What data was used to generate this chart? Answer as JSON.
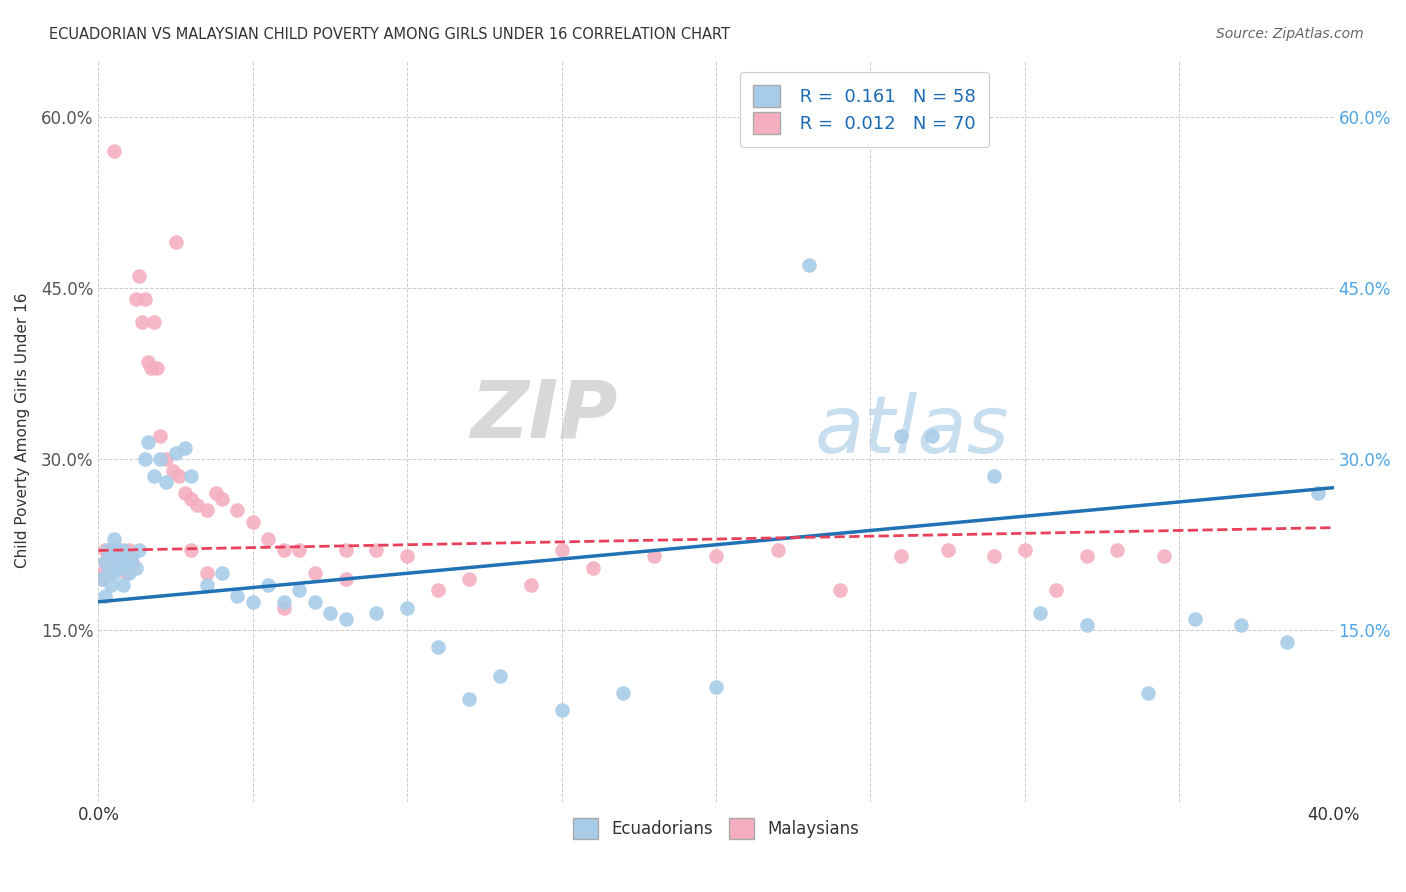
{
  "title": "ECUADORIAN VS MALAYSIAN CHILD POVERTY AMONG GIRLS UNDER 16 CORRELATION CHART",
  "source": "Source: ZipAtlas.com",
  "ylabel": "Child Poverty Among Girls Under 16",
  "x_min": 0.0,
  "x_max": 0.4,
  "y_min": 0.0,
  "y_max": 0.65,
  "x_ticks": [
    0.0,
    0.05,
    0.1,
    0.15,
    0.2,
    0.25,
    0.3,
    0.35,
    0.4
  ],
  "y_ticks": [
    0.0,
    0.15,
    0.3,
    0.45,
    0.6
  ],
  "y_tick_labels_left": [
    "",
    "15.0%",
    "30.0%",
    "45.0%",
    "60.0%"
  ],
  "y_tick_labels_right": [
    "",
    "15.0%",
    "30.0%",
    "45.0%",
    "60.0%"
  ],
  "ecu_color": "#a8cce8",
  "mal_color": "#f4aec0",
  "ecu_line_color": "#2171b5",
  "mal_line_color": "#e8405a",
  "ecu_R": "0.161",
  "ecu_N": "58",
  "mal_R": "0.012",
  "mal_N": "70",
  "watermark_zip": "ZIP",
  "watermark_atlas": "atlas",
  "legend_label_ecu": "Ecuadorians",
  "legend_label_mal": "Malaysians",
  "ecu_scatter_x": [
    0.001,
    0.002,
    0.002,
    0.003,
    0.003,
    0.004,
    0.004,
    0.005,
    0.005,
    0.006,
    0.006,
    0.007,
    0.007,
    0.008,
    0.008,
    0.009,
    0.01,
    0.01,
    0.011,
    0.012,
    0.013,
    0.015,
    0.016,
    0.018,
    0.02,
    0.022,
    0.025,
    0.028,
    0.03,
    0.035,
    0.04,
    0.045,
    0.05,
    0.055,
    0.06,
    0.065,
    0.07,
    0.075,
    0.08,
    0.09,
    0.1,
    0.11,
    0.12,
    0.13,
    0.15,
    0.17,
    0.2,
    0.23,
    0.26,
    0.27,
    0.29,
    0.305,
    0.32,
    0.34,
    0.355,
    0.37,
    0.385,
    0.395
  ],
  "ecu_scatter_y": [
    0.195,
    0.21,
    0.18,
    0.22,
    0.2,
    0.19,
    0.215,
    0.23,
    0.2,
    0.205,
    0.22,
    0.215,
    0.21,
    0.22,
    0.19,
    0.205,
    0.21,
    0.2,
    0.215,
    0.205,
    0.22,
    0.3,
    0.315,
    0.285,
    0.3,
    0.28,
    0.305,
    0.31,
    0.285,
    0.19,
    0.2,
    0.18,
    0.175,
    0.19,
    0.175,
    0.185,
    0.175,
    0.165,
    0.16,
    0.165,
    0.17,
    0.135,
    0.09,
    0.11,
    0.08,
    0.095,
    0.1,
    0.47,
    0.32,
    0.32,
    0.285,
    0.165,
    0.155,
    0.095,
    0.16,
    0.155,
    0.14,
    0.27
  ],
  "mal_scatter_x": [
    0.001,
    0.001,
    0.002,
    0.002,
    0.003,
    0.003,
    0.004,
    0.004,
    0.005,
    0.005,
    0.006,
    0.006,
    0.007,
    0.007,
    0.008,
    0.008,
    0.009,
    0.01,
    0.01,
    0.011,
    0.012,
    0.013,
    0.014,
    0.015,
    0.016,
    0.017,
    0.018,
    0.019,
    0.02,
    0.022,
    0.024,
    0.026,
    0.028,
    0.03,
    0.032,
    0.035,
    0.038,
    0.04,
    0.045,
    0.05,
    0.055,
    0.06,
    0.065,
    0.07,
    0.08,
    0.09,
    0.1,
    0.11,
    0.12,
    0.14,
    0.15,
    0.16,
    0.18,
    0.2,
    0.22,
    0.24,
    0.26,
    0.275,
    0.29,
    0.3,
    0.31,
    0.32,
    0.33,
    0.345,
    0.005,
    0.025,
    0.03,
    0.035,
    0.06,
    0.08
  ],
  "mal_scatter_y": [
    0.195,
    0.2,
    0.22,
    0.21,
    0.2,
    0.215,
    0.22,
    0.205,
    0.215,
    0.22,
    0.22,
    0.21,
    0.215,
    0.22,
    0.205,
    0.21,
    0.2,
    0.215,
    0.22,
    0.21,
    0.44,
    0.46,
    0.42,
    0.44,
    0.385,
    0.38,
    0.42,
    0.38,
    0.32,
    0.3,
    0.29,
    0.285,
    0.27,
    0.265,
    0.26,
    0.255,
    0.27,
    0.265,
    0.255,
    0.245,
    0.23,
    0.22,
    0.22,
    0.2,
    0.195,
    0.22,
    0.215,
    0.185,
    0.195,
    0.19,
    0.22,
    0.205,
    0.215,
    0.215,
    0.22,
    0.185,
    0.215,
    0.22,
    0.215,
    0.22,
    0.185,
    0.215,
    0.22,
    0.215,
    0.57,
    0.49,
    0.22,
    0.2,
    0.17,
    0.22
  ],
  "background_color": "#ffffff",
  "grid_color": "#cccccc"
}
